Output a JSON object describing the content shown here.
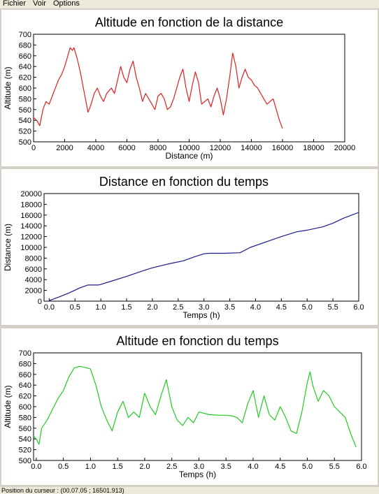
{
  "menu": {
    "file": "Fichier",
    "view": "Voir",
    "options": "Options"
  },
  "status": {
    "text": "Position du curseur : (00.07.05 ; 16501.913)"
  },
  "chart_data": [
    {
      "type": "line",
      "title": "Altitude en fonction de la distance",
      "xlabel": "Distance (m)",
      "ylabel": "Altitude (m)",
      "xlim": [
        0,
        20000
      ],
      "ylim": [
        500,
        700
      ],
      "xticks": [
        0,
        2000,
        4000,
        6000,
        8000,
        10000,
        12000,
        14000,
        16000,
        18000,
        20000
      ],
      "yticks": [
        500,
        520,
        540,
        560,
        580,
        600,
        620,
        640,
        660,
        680,
        700
      ],
      "color": "#e02020",
      "series": [
        {
          "x": [
            0,
            200,
            400,
            600,
            800,
            1000,
            1200,
            1400,
            1600,
            1800,
            2000,
            2200,
            2350,
            2500,
            2600,
            2800,
            3000,
            3200,
            3400,
            3500,
            3700,
            3900,
            4100,
            4300,
            4500,
            4700,
            5000,
            5200,
            5400,
            5600,
            5800,
            6000,
            6200,
            6400,
            6600,
            6800,
            7000,
            7200,
            7400,
            7600,
            7800,
            8000,
            8200,
            8400,
            8600,
            8800,
            9000,
            9200,
            9400,
            9600,
            9800,
            10000,
            10200,
            10400,
            10600,
            10800,
            11000,
            11200,
            11400,
            11600,
            11800,
            12000,
            12200,
            12400,
            12600,
            12800,
            13000,
            13200,
            13400,
            13600,
            13800,
            14000,
            14200,
            14400,
            14600,
            14800,
            15000,
            15200,
            15400,
            15600,
            15800,
            16000
          ],
          "y": [
            545,
            540,
            530,
            560,
            575,
            570,
            585,
            600,
            615,
            625,
            640,
            660,
            675,
            670,
            675,
            655,
            630,
            600,
            570,
            555,
            570,
            590,
            600,
            585,
            575,
            590,
            600,
            590,
            615,
            640,
            620,
            610,
            635,
            650,
            620,
            600,
            575,
            590,
            580,
            570,
            560,
            585,
            590,
            580,
            560,
            565,
            580,
            600,
            620,
            635,
            600,
            575,
            605,
            630,
            610,
            570,
            575,
            580,
            565,
            585,
            600,
            580,
            550,
            580,
            620,
            665,
            640,
            600,
            620,
            635,
            620,
            615,
            605,
            600,
            590,
            580,
            570,
            575,
            580,
            560,
            540,
            525
          ]
        }
      ]
    },
    {
      "type": "line",
      "title": "Distance en fonction du temps",
      "xlabel": "Temps (h)",
      "ylabel": "Distance (m)",
      "xlim": [
        -0.1,
        6.0
      ],
      "ylim": [
        0,
        20000
      ],
      "xticks": [
        0.0,
        0.5,
        1.0,
        1.5,
        2.0,
        2.5,
        3.0,
        3.5,
        4.0,
        4.5,
        5.0,
        5.5,
        6.0
      ],
      "yticks": [
        0,
        2000,
        4000,
        6000,
        8000,
        10000,
        12000,
        14000,
        16000,
        18000,
        20000
      ],
      "color": "#1a1a8a",
      "series": [
        {
          "x": [
            0.0,
            0.2,
            0.4,
            0.6,
            0.75,
            0.95,
            1.0,
            1.2,
            1.5,
            1.8,
            2.0,
            2.3,
            2.6,
            2.8,
            3.0,
            3.1,
            3.4,
            3.7,
            3.9,
            4.2,
            4.5,
            4.8,
            5.0,
            5.3,
            5.5,
            5.7,
            6.0
          ],
          "y": [
            100,
            800,
            1600,
            2500,
            3000,
            3000,
            3100,
            3700,
            4600,
            5600,
            6200,
            6900,
            7500,
            8200,
            8800,
            8900,
            8900,
            9000,
            10000,
            11000,
            12000,
            12900,
            13200,
            13800,
            14500,
            15400,
            16500
          ]
        }
      ]
    },
    {
      "type": "line",
      "title": "Altitude en fonction du temps",
      "xlabel": "Temps (h)",
      "ylabel": "Altitude (m)",
      "xlim": [
        -0.05,
        6.0
      ],
      "ylim": [
        500,
        700
      ],
      "xticks": [
        0.0,
        0.5,
        1.0,
        1.5,
        2.0,
        2.5,
        3.0,
        3.5,
        4.0,
        4.5,
        5.0,
        5.5,
        6.0
      ],
      "yticks": [
        500,
        520,
        540,
        560,
        580,
        600,
        620,
        640,
        660,
        680,
        700
      ],
      "color": "#22cc22",
      "series": [
        {
          "x": [
            -0.05,
            0.0,
            0.05,
            0.1,
            0.2,
            0.3,
            0.4,
            0.5,
            0.6,
            0.7,
            0.8,
            0.9,
            1.0,
            1.1,
            1.2,
            1.3,
            1.4,
            1.5,
            1.6,
            1.7,
            1.8,
            1.9,
            2.0,
            2.1,
            2.2,
            2.3,
            2.4,
            2.5,
            2.6,
            2.7,
            2.8,
            2.9,
            3.0,
            3.2,
            3.4,
            3.5,
            3.6,
            3.7,
            3.8,
            3.9,
            4.0,
            4.1,
            4.2,
            4.3,
            4.4,
            4.5,
            4.6,
            4.7,
            4.8,
            4.9,
            5.0,
            5.05,
            5.1,
            5.2,
            5.3,
            5.4,
            5.5,
            5.6,
            5.7,
            5.8,
            5.9
          ],
          "y": [
            545,
            540,
            530,
            560,
            575,
            595,
            615,
            630,
            655,
            672,
            675,
            673,
            670,
            640,
            600,
            575,
            555,
            590,
            610,
            580,
            590,
            580,
            625,
            600,
            585,
            620,
            650,
            600,
            575,
            565,
            580,
            570,
            590,
            585,
            584,
            584,
            583,
            580,
            570,
            605,
            630,
            580,
            620,
            585,
            575,
            600,
            580,
            555,
            550,
            590,
            645,
            665,
            640,
            610,
            630,
            620,
            600,
            590,
            580,
            550,
            525
          ]
        }
      ]
    }
  ]
}
